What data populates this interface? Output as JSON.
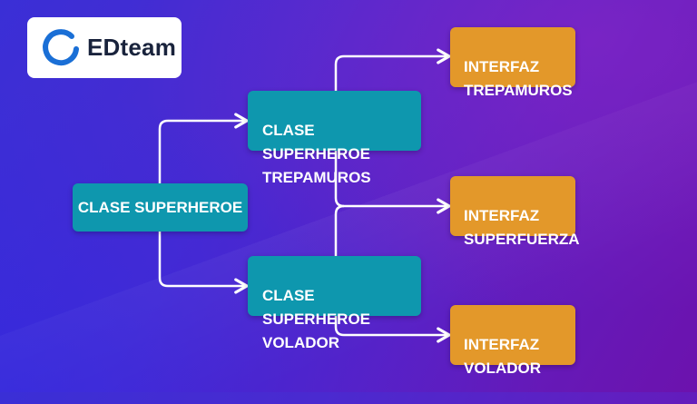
{
  "logo": {
    "text": "EDteam",
    "accent": "#1a6fd6"
  },
  "colors": {
    "clase": "#0e97ae",
    "interfaz": "#e3982a",
    "line": "#ffffff"
  },
  "nodes": {
    "superheroe": "CLASE SUPERHEROE",
    "trepamuros": "CLASE SUPERHEROE\nTREPAMUROS",
    "volador": "CLASE SUPERHEROE\nVOLADOR",
    "i_trepamuros": "INTERFAZ\nTREPAMUROS",
    "i_superfuerza": "INTERFAZ\nSUPERFUERZA",
    "i_volador": "INTERFAZ\nVOLADOR"
  }
}
